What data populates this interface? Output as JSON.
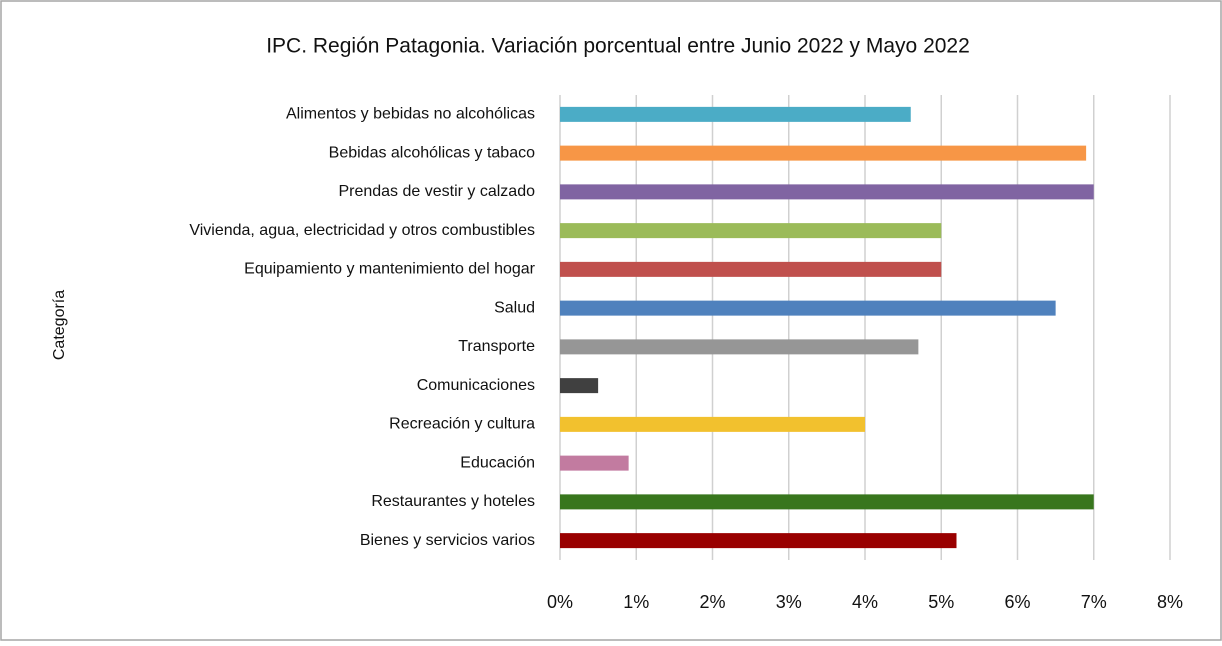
{
  "chart_data": {
    "type": "bar",
    "orientation": "horizontal",
    "title": "IPC. Región Patagonia. Variación porcentual entre Junio 2022 y Mayo 2022",
    "y_label": "Categoría",
    "categories": [
      "Alimentos y bebidas no alcohólicas",
      "Bebidas alcohólicas y tabaco",
      "Prendas de vestir y calzado",
      "Vivienda, agua, electricidad y otros combustibles",
      "Equipamiento y mantenimiento del hogar",
      "Salud",
      "Transporte",
      "Comunicaciones",
      "Recreación y cultura",
      "Educación",
      "Restaurantes y hoteles",
      "Bienes y servicios varios"
    ],
    "values": [
      4.6,
      6.9,
      7.0,
      5.0,
      5.0,
      6.5,
      4.7,
      0.5,
      4.0,
      0.9,
      7.0,
      5.2
    ],
    "colors": [
      "#4bacc6",
      "#f79646",
      "#8064a2",
      "#9bbb59",
      "#c0504d",
      "#4f81bd",
      "#969696",
      "#404040",
      "#f2c12e",
      "#c27ba0",
      "#38761d",
      "#990000"
    ],
    "xlim": [
      0,
      8
    ],
    "xticks": [
      {
        "value": 0,
        "label": "0%"
      },
      {
        "value": 1,
        "label": "1%"
      },
      {
        "value": 2,
        "label": "2%"
      },
      {
        "value": 3,
        "label": "3%"
      },
      {
        "value": 4,
        "label": "4%"
      },
      {
        "value": 5,
        "label": "5%"
      },
      {
        "value": 6,
        "label": "6%"
      },
      {
        "value": 7,
        "label": "7%"
      },
      {
        "value": 8,
        "label": "8%"
      }
    ],
    "grid": true
  }
}
